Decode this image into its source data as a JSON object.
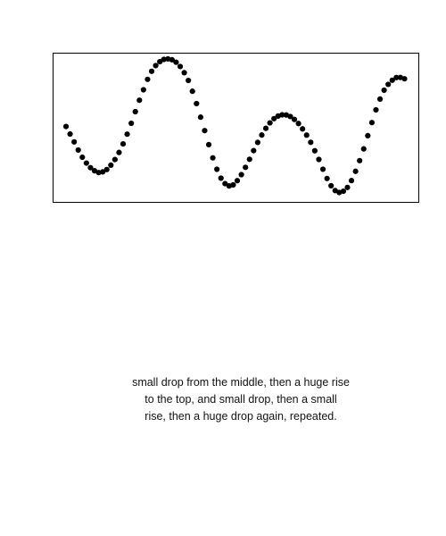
{
  "chart_data": {
    "type": "scatter",
    "title": "",
    "xlabel": "",
    "ylabel": "",
    "grid": false,
    "axes_visible": false,
    "marker_color": "#000000",
    "frame_color": "#000000",
    "xlim": [
      0,
      100
    ],
    "ylim": [
      -1,
      1
    ],
    "series": [
      {
        "x": [
          0,
          1.2,
          2.4,
          3.6,
          4.8,
          6,
          7.2,
          8.4,
          9.6,
          10.8,
          12,
          13.2,
          14.4,
          15.6,
          16.8,
          18,
          19.2,
          20.4,
          21.6,
          22.8,
          24,
          25.2,
          26.4,
          27.6,
          28.8,
          30,
          31.2,
          32.4,
          33.6,
          34.8,
          36,
          37.2,
          38.4,
          39.6,
          40.8,
          42,
          43.2,
          44.4,
          45.6,
          46.8,
          48,
          49.2,
          50.4,
          51.6,
          52.8,
          54,
          55.2,
          56.4,
          57.6,
          58.8,
          60,
          61.2,
          62.4,
          63.6,
          64.8,
          66,
          67.2,
          68.4,
          69.6,
          70.8,
          72,
          73.2,
          74.4,
          75.6,
          76.8,
          78,
          79.2,
          80.4,
          81.6,
          82.8,
          84,
          85.2,
          86.4,
          87.6,
          88.8,
          90,
          91.2,
          92.4,
          93.6,
          94.8,
          96,
          97.2,
          98.4,
          99.6
        ],
        "y": [
          0.005,
          -0.103,
          -0.216,
          -0.333,
          -0.436,
          -0.52,
          -0.586,
          -0.63,
          -0.656,
          -0.646,
          -0.613,
          -0.55,
          -0.469,
          -0.367,
          -0.245,
          -0.105,
          0.051,
          0.218,
          0.382,
          0.532,
          0.682,
          0.797,
          0.879,
          0.935,
          0.968,
          0.975,
          0.963,
          0.927,
          0.866,
          0.777,
          0.666,
          0.511,
          0.334,
          0.139,
          -0.054,
          -0.255,
          -0.445,
          -0.609,
          -0.737,
          -0.815,
          -0.848,
          -0.833,
          -0.772,
          -0.686,
          -0.581,
          -0.466,
          -0.341,
          -0.223,
          -0.117,
          -0.021,
          0.057,
          0.118,
          0.155,
          0.173,
          0.17,
          0.148,
          0.106,
          0.048,
          -0.029,
          -0.119,
          -0.222,
          -0.343,
          -0.468,
          -0.608,
          -0.741,
          -0.845,
          -0.915,
          -0.942,
          -0.924,
          -0.87,
          -0.771,
          -0.638,
          -0.485,
          -0.316,
          -0.127,
          0.061,
          0.244,
          0.399,
          0.526,
          0.61,
          0.669,
          0.707,
          0.709,
          0.69
        ]
      }
    ]
  },
  "caption": {
    "line1": "small drop from the middle, then a huge rise",
    "line2": "to the top, and small drop, then a small",
    "line3": "rise, then a huge drop again, repeated."
  }
}
